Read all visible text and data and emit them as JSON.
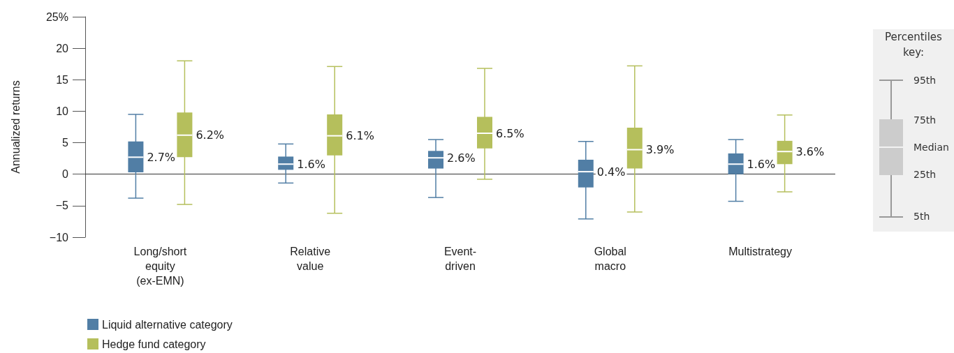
{
  "chart_data": {
    "type": "box",
    "ylabel": "Annualized returns",
    "categories": [
      "Long/short\nequity\n(ex-EMN)",
      "Relative\nvalue",
      "Event-\ndriven",
      "Global\nmacro",
      "Multistrategy"
    ],
    "series": [
      {
        "name": "Liquid alternative category",
        "color": "#517ea5",
        "value_labels": [
          "2.7%",
          "1.6%",
          "2.6%",
          "0.4%",
          "1.6%"
        ],
        "boxes": [
          {
            "low": -3.8,
            "q1": 0.3,
            "median": 2.7,
            "q3": 5.2,
            "high": 9.5
          },
          {
            "low": -1.4,
            "q1": 0.7,
            "median": 1.6,
            "q3": 2.8,
            "high": 4.8
          },
          {
            "low": -3.7,
            "q1": 0.9,
            "median": 2.6,
            "q3": 3.7,
            "high": 5.5
          },
          {
            "low": -7.1,
            "q1": -2.1,
            "median": 0.4,
            "q3": 2.3,
            "high": 5.2
          },
          {
            "low": -4.3,
            "q1": 0.0,
            "median": 1.6,
            "q3": 3.3,
            "high": 5.5
          }
        ]
      },
      {
        "name": "Hedge fund category",
        "color": "#b5bf5c",
        "value_labels": [
          "6.2%",
          "6.1%",
          "6.5%",
          "3.9%",
          "3.6%"
        ],
        "boxes": [
          {
            "low": -4.8,
            "q1": 2.7,
            "median": 6.2,
            "q3": 9.8,
            "high": 18.0
          },
          {
            "low": -6.2,
            "q1": 3.0,
            "median": 6.1,
            "q3": 9.5,
            "high": 17.1
          },
          {
            "low": -0.8,
            "q1": 4.1,
            "median": 6.5,
            "q3": 9.1,
            "high": 16.8
          },
          {
            "low": -6.0,
            "q1": 0.9,
            "median": 3.9,
            "q3": 7.4,
            "high": 17.2
          },
          {
            "low": -2.8,
            "q1": 1.6,
            "median": 3.6,
            "q3": 5.3,
            "high": 9.4
          }
        ]
      }
    ],
    "ylim": [
      -10,
      25
    ],
    "yticks": [
      {
        "value": -10,
        "label": "−10"
      },
      {
        "value": -5,
        "label": "−5"
      },
      0,
      5,
      10,
      15,
      20,
      {
        "value": 25,
        "label": "25%"
      }
    ],
    "ref_lines": [
      {
        "axis": "y",
        "value": 0,
        "color": "#333333"
      }
    ],
    "grid": false,
    "legend": "bottom left",
    "annotations": [
      "Percentiles key:",
      "95th",
      "75th",
      "Median",
      "25th",
      "5th"
    ]
  }
}
